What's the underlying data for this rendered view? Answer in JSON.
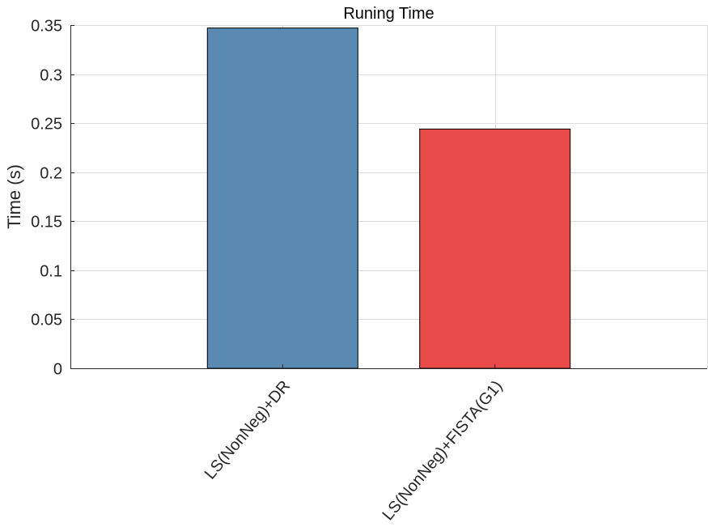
{
  "chart_data": {
    "type": "bar",
    "title": "Runing Time",
    "xlabel": "",
    "ylabel": "Time (s)",
    "categories": [
      "LS(NonNeg)+DR",
      "LS(NonNeg)+FISTA(G1)"
    ],
    "values": [
      0.347,
      0.244
    ],
    "colors": [
      "#5a8ab2",
      "#e84a4a"
    ],
    "ylim": [
      0,
      0.35
    ],
    "yticks": [
      0,
      0.05,
      0.1,
      0.15,
      0.2,
      0.25,
      0.3,
      0.35
    ],
    "ytick_labels": [
      "0",
      "0.05",
      "0.1",
      "0.15",
      "0.2",
      "0.25",
      "0.3",
      "0.35"
    ],
    "xlim": [
      0,
      3
    ],
    "grid": true,
    "legend": "none"
  }
}
